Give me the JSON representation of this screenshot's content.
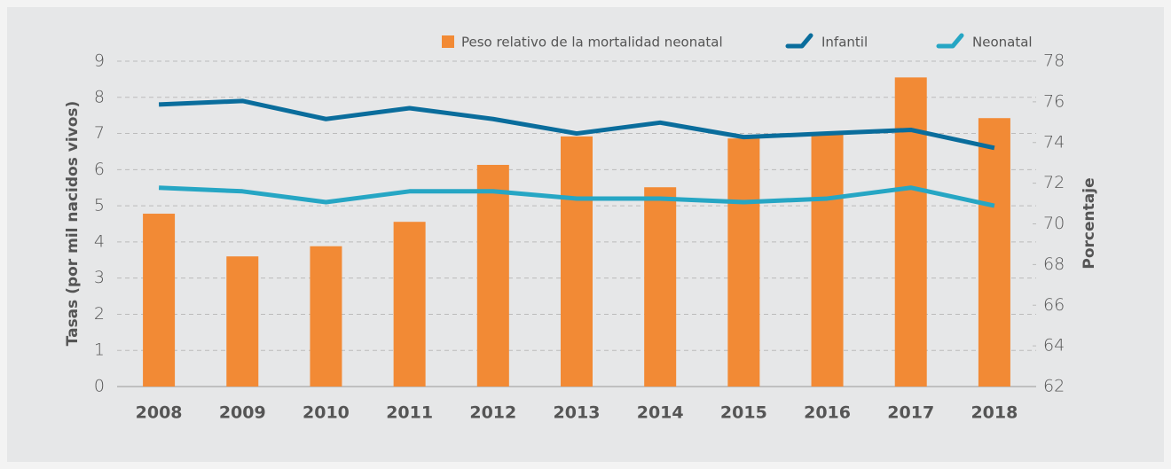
{
  "chart_data": {
    "type": "bar",
    "categories": [
      "2008",
      "2009",
      "2010",
      "2011",
      "2012",
      "2013",
      "2014",
      "2015",
      "2016",
      "2017",
      "2018"
    ],
    "series": [
      {
        "name": "Peso relativo de la mortalidad neonatal",
        "type": "bar",
        "axis": "y2",
        "color": "#f28a35",
        "values": [
          70.5,
          68.4,
          68.9,
          70.1,
          72.9,
          74.3,
          71.8,
          74.2,
          74.4,
          77.2,
          75.2
        ]
      },
      {
        "name": "Infantil",
        "type": "line",
        "color": "#0a6d9c",
        "values": [
          7.8,
          7.9,
          7.4,
          7.7,
          7.4,
          7.0,
          7.3,
          6.9,
          7.0,
          7.1,
          6.6
        ]
      },
      {
        "name": "Neonatal",
        "type": "line",
        "color": "#26a6c4",
        "values": [
          5.5,
          5.4,
          5.1,
          5.4,
          5.4,
          5.2,
          5.2,
          5.1,
          5.2,
          5.5,
          5.0
        ]
      }
    ],
    "y_label": "Tasas (por mil nacidos vivos)",
    "y2_label": "Porcentaje",
    "ylim": [
      0,
      9
    ],
    "yticks": [
      0,
      1,
      2,
      3,
      4,
      5,
      6,
      7,
      8,
      9
    ],
    "y2lim": [
      62,
      78
    ],
    "y2ticks": [
      62,
      64,
      66,
      68,
      70,
      72,
      74,
      76,
      78
    ],
    "grid": true,
    "legend": "top-right"
  }
}
